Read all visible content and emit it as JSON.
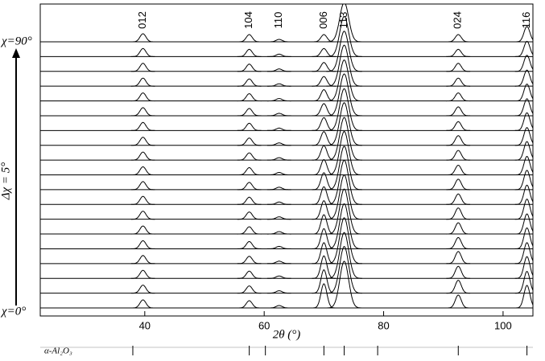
{
  "chart_data": {
    "type": "stacked-peaks",
    "xlabel": "2θ (°)",
    "xlim": [
      22.5,
      105
    ],
    "xticks": [
      40,
      60,
      80,
      100
    ],
    "peak_labels": [
      "012",
      "104",
      "110",
      "006",
      "113",
      "024",
      "116"
    ],
    "x": [
      39.7,
      57.5,
      62.5,
      70,
      73.4,
      92.5,
      104
    ],
    "color": "#000000",
    "top_label": "χ=90°",
    "step_label": "Δχ = 5°",
    "bottom_label": "χ=0°",
    "series": [
      {
        "values": [
          10,
          9,
          3,
          30,
          58,
          16,
          28
        ]
      },
      {
        "values": [
          10,
          9,
          3,
          29,
          58,
          16,
          27
        ]
      },
      {
        "values": [
          10,
          9,
          3,
          28,
          57,
          15,
          27
        ]
      },
      {
        "values": [
          10,
          9,
          3,
          26,
          57,
          15,
          26
        ]
      },
      {
        "values": [
          10,
          9,
          3,
          25,
          56,
          14,
          26
        ]
      },
      {
        "values": [
          10,
          9,
          3,
          24,
          56,
          14,
          25
        ]
      },
      {
        "values": [
          10,
          9,
          3,
          23,
          55,
          14,
          25
        ]
      },
      {
        "values": [
          10,
          9,
          3,
          22,
          55,
          13,
          24
        ]
      },
      {
        "values": [
          10,
          9,
          3,
          21,
          54,
          13,
          24
        ]
      },
      {
        "values": [
          10,
          9,
          3,
          19,
          54,
          12,
          23
        ]
      },
      {
        "values": [
          10,
          9,
          3,
          18,
          53,
          12,
          23
        ]
      },
      {
        "values": [
          10,
          9,
          3,
          17,
          53,
          12,
          22
        ]
      },
      {
        "values": [
          10,
          9,
          3,
          16,
          52,
          11,
          22
        ]
      },
      {
        "values": [
          10,
          9,
          3,
          15,
          52,
          11,
          21
        ]
      },
      {
        "values": [
          10,
          9,
          3,
          14,
          51,
          10,
          21
        ]
      },
      {
        "values": [
          10,
          9,
          3,
          12,
          51,
          10,
          20
        ]
      },
      {
        "values": [
          10,
          9,
          3,
          11,
          50,
          10,
          20
        ]
      },
      {
        "values": [
          10,
          9,
          3,
          10,
          50,
          9,
          19
        ]
      },
      {
        "values": [
          10,
          9,
          3,
          9,
          49,
          9,
          19
        ]
      }
    ],
    "reference": {
      "label": "α-Al₂O₃",
      "positions": [
        38,
        57.5,
        60.2,
        70,
        73.4,
        79,
        92.5,
        104
      ]
    }
  }
}
